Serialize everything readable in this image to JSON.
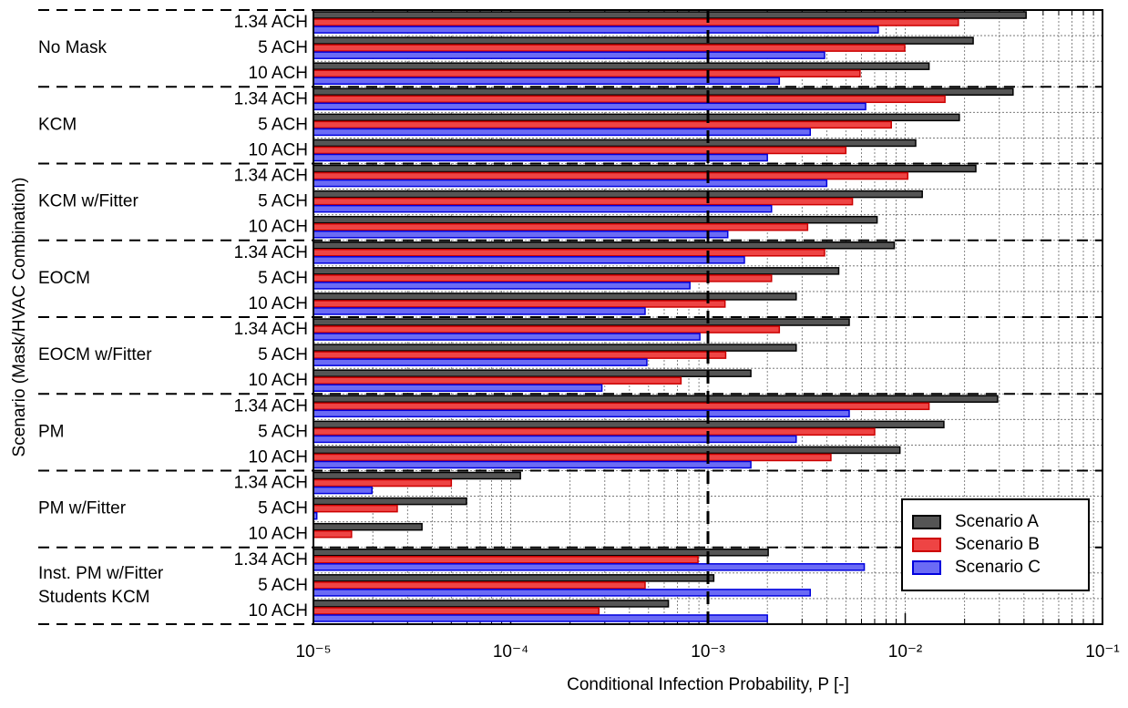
{
  "chart_data": {
    "type": "barh",
    "xlabel": "Conditional Infection Probability, P [-]",
    "ylabel": "Scenario (Mask/HVAC Combination)",
    "groups": [
      [
        "No Mask"
      ],
      [
        "KCM"
      ],
      [
        "KCM w/Fitter"
      ],
      [
        "EOCM"
      ],
      [
        "EOCM w/Fitter"
      ],
      [
        "PM"
      ],
      [
        "PM w/Fitter"
      ],
      [
        "Inst. PM w/Fitter",
        "Students KCM"
      ]
    ],
    "categories": [
      "1.34 ACH",
      "5 ACH",
      "10 ACH",
      "1.34 ACH",
      "5 ACH",
      "10 ACH",
      "1.34 ACH",
      "5 ACH",
      "10 ACH",
      "1.34 ACH",
      "5 ACH",
      "10 ACH",
      "1.34 ACH",
      "5 ACH",
      "10 ACH",
      "1.34 ACH",
      "5 ACH",
      "10 ACH",
      "1.34 ACH",
      "5 ACH",
      "10 ACH",
      "1.34 ACH",
      "5 ACH",
      "10 ACH"
    ],
    "series": [
      {
        "name": "Scenario A",
        "color": "#555555",
        "stroke": "#000000",
        "values": [
          0.041,
          0.0221,
          0.0132,
          0.0352,
          0.0188,
          0.0113,
          0.0228,
          0.0122,
          0.0072,
          0.0088,
          0.0046,
          0.0028,
          0.0052,
          0.0028,
          0.00165,
          0.0294,
          0.0157,
          0.0094,
          0.000112,
          5.97e-05,
          3.55e-05,
          0.00202,
          0.00107,
          0.00063
        ]
      },
      {
        "name": "Scenario B",
        "color": "#ee4444",
        "stroke": "#cc0000",
        "values": [
          0.0186,
          0.00995,
          0.0059,
          0.0159,
          0.0085,
          0.005,
          0.0103,
          0.0054,
          0.0032,
          0.0039,
          0.0021,
          0.00122,
          0.0023,
          0.00123,
          0.00073,
          0.0132,
          0.007,
          0.0042,
          5e-05,
          2.66e-05,
          1.56e-05,
          0.00089,
          0.00048,
          0.00028
        ]
      },
      {
        "name": "Scenario C",
        "color": "#6b6bf5",
        "stroke": "#0000dd",
        "values": [
          0.0073,
          0.0039,
          0.0023,
          0.0063,
          0.0033,
          0.002,
          0.004,
          0.0021,
          0.00126,
          0.00153,
          0.00081,
          0.00048,
          0.00091,
          0.00049,
          0.00029,
          0.0052,
          0.0028,
          0.00165,
          1.98e-05,
          1.04e-05,
          null,
          0.0062,
          0.0033,
          0.002
        ]
      }
    ],
    "xscale": "log",
    "xlim": [
      1e-05,
      0.1
    ],
    "xticks": [
      {
        "value": 1e-05,
        "label": "10⁻⁵"
      },
      {
        "value": 0.0001,
        "label": "10⁻⁴"
      },
      {
        "value": 0.001,
        "label": "10⁻³"
      },
      {
        "value": 0.01,
        "label": "10⁻²"
      },
      {
        "value": 0.1,
        "label": "10⁻¹"
      }
    ],
    "reference_line": 0.001,
    "grid": true,
    "legend": "lower right"
  }
}
